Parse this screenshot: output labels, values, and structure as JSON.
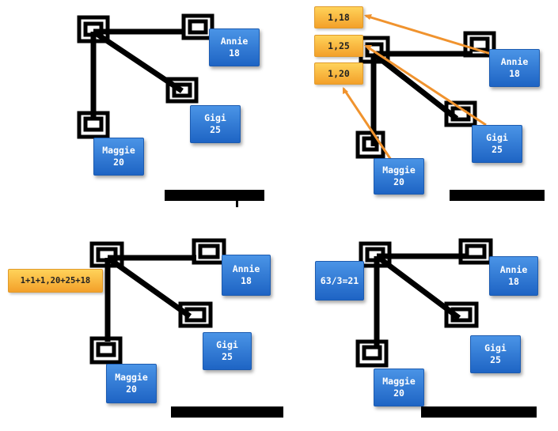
{
  "panels": [
    {
      "nodes": [
        {
          "name": "Annie",
          "value": "18"
        },
        {
          "name": "Gigi",
          "value": "25"
        },
        {
          "name": "Maggie",
          "value": "20"
        }
      ]
    },
    {
      "nodes": [
        {
          "name": "Annie",
          "value": "18"
        },
        {
          "name": "Gigi",
          "value": "25"
        },
        {
          "name": "Maggie",
          "value": "20"
        }
      ],
      "partials": [
        "1,18",
        "1,25",
        "1,20"
      ]
    },
    {
      "nodes": [
        {
          "name": "Annie",
          "value": "18"
        },
        {
          "name": "Gigi",
          "value": "25"
        },
        {
          "name": "Maggie",
          "value": "20"
        }
      ],
      "sum_label": "1+1+1,20+25+18"
    },
    {
      "nodes": [
        {
          "name": "Annie",
          "value": "18"
        },
        {
          "name": "Gigi",
          "value": "25"
        },
        {
          "name": "Maggie",
          "value": "20"
        }
      ],
      "result_label": "63/3=21"
    }
  ],
  "colors": {
    "node": "#2f7ad8",
    "partial": "#f8b840",
    "arrow": "#f0932e",
    "wire": "#000000"
  }
}
